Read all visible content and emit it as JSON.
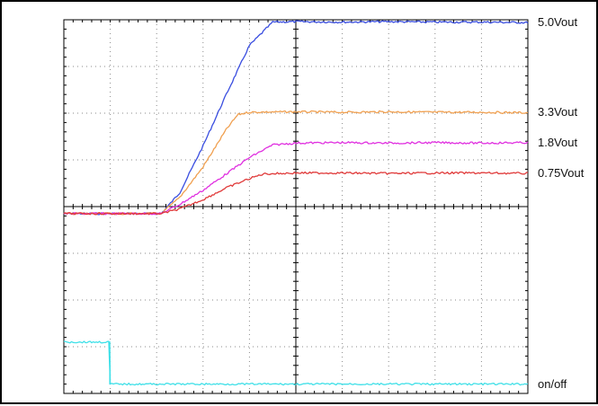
{
  "chart_data": {
    "type": "line",
    "title": "",
    "xlabel": "",
    "ylabel": "",
    "grid": true,
    "x_divisions": 10,
    "y_divisions": 8,
    "xlim": [
      0,
      10
    ],
    "ylim": [
      0,
      8
    ],
    "series": [
      {
        "name": "5.0Vout",
        "color": "#3a4ee0",
        "x": [
          0,
          2.1,
          2.5,
          3.0,
          3.5,
          4.0,
          4.5,
          5.0,
          6.0,
          7.0,
          8.0,
          9.0,
          10.0
        ],
        "y": [
          3.85,
          3.85,
          4.3,
          5.3,
          6.4,
          7.45,
          7.95,
          7.96,
          7.95,
          7.96,
          7.95,
          7.95,
          7.94
        ]
      },
      {
        "name": "3.3Vout",
        "color": "#f0a050",
        "x": [
          0,
          2.1,
          2.5,
          3.0,
          3.5,
          3.75,
          4.0,
          5.0,
          6.0,
          7.0,
          8.0,
          9.0,
          10.0
        ],
        "y": [
          3.85,
          3.85,
          4.2,
          4.85,
          5.65,
          5.97,
          6.02,
          6.03,
          6.02,
          6.03,
          6.02,
          6.02,
          6.01
        ]
      },
      {
        "name": "1.8Vout",
        "color": "#e030e0",
        "x": [
          0,
          2.1,
          2.5,
          3.0,
          3.5,
          4.0,
          4.5,
          5.0,
          6.0,
          7.0,
          8.0,
          9.0,
          10.0
        ],
        "y": [
          3.85,
          3.85,
          4.05,
          4.35,
          4.7,
          5.05,
          5.32,
          5.36,
          5.37,
          5.36,
          5.37,
          5.36,
          5.37
        ]
      },
      {
        "name": "0.75Vout",
        "color": "#e03a3a",
        "x": [
          0,
          2.1,
          2.5,
          3.0,
          3.5,
          4.0,
          4.3,
          5.0,
          6.0,
          7.0,
          8.0,
          9.0,
          10.0
        ],
        "y": [
          3.85,
          3.85,
          3.95,
          4.15,
          4.4,
          4.6,
          4.7,
          4.72,
          4.72,
          4.71,
          4.72,
          4.72,
          4.71
        ]
      },
      {
        "name": "on/off",
        "color": "#40e0e8",
        "x": [
          0,
          0.99,
          1.0,
          10.0
        ],
        "y": [
          1.1,
          1.1,
          0.2,
          0.2
        ]
      }
    ]
  }
}
